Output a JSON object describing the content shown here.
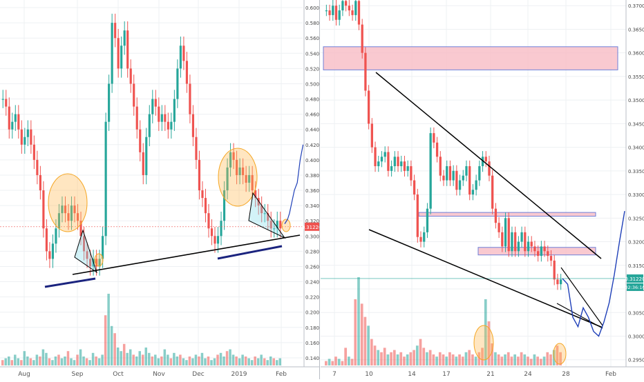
{
  "chart_data": [
    {
      "type": "candlestick",
      "x_ticks": [
        "Aug",
        "Sep",
        "Oct",
        "Nov",
        "Dec",
        "2019",
        "Feb"
      ],
      "y_ticks": [
        "0.60000",
        "0.58000",
        "0.56000",
        "0.54000",
        "0.52000",
        "0.50000",
        "0.48000",
        "0.46000",
        "0.44000",
        "0.42000",
        "0.40000",
        "0.38000",
        "0.36000",
        "0.34000",
        "0.32000",
        "0.30000",
        "0.28000",
        "0.26000",
        "0.24000",
        "0.22000",
        "0.20000",
        "0.18000",
        "0.16000",
        "0.14000"
      ],
      "ylim": [
        0.13,
        0.61
      ],
      "price_tag": "0.31220",
      "colors": {
        "up": "#26a69a",
        "down": "#ef5350",
        "projection": "#1e3fb8",
        "support": "#1a237e"
      },
      "price_series": [
        0.48,
        0.47,
        0.44,
        0.45,
        0.46,
        0.44,
        0.42,
        0.43,
        0.44,
        0.42,
        0.4,
        0.38,
        0.36,
        0.31,
        0.28,
        0.27,
        0.29,
        0.31,
        0.33,
        0.34,
        0.33,
        0.32,
        0.34,
        0.33,
        0.32,
        0.3,
        0.28,
        0.27,
        0.26,
        0.27,
        0.26,
        0.27,
        0.3,
        0.45,
        0.5,
        0.58,
        0.56,
        0.52,
        0.55,
        0.57,
        0.52,
        0.5,
        0.47,
        0.44,
        0.41,
        0.38,
        0.43,
        0.46,
        0.48,
        0.47,
        0.45,
        0.46,
        0.45,
        0.44,
        0.45,
        0.48,
        0.52,
        0.55,
        0.53,
        0.5,
        0.46,
        0.43,
        0.4,
        0.36,
        0.35,
        0.33,
        0.31,
        0.3,
        0.29,
        0.3,
        0.32,
        0.36,
        0.39,
        0.41,
        0.4,
        0.38,
        0.39,
        0.38,
        0.37,
        0.38,
        0.36,
        0.35,
        0.34,
        0.33,
        0.33,
        0.32,
        0.31,
        0.31,
        0.32,
        0.31
      ],
      "volume_series": [
        3,
        4,
        5,
        3,
        6,
        4,
        3,
        8,
        5,
        4,
        3,
        6,
        5,
        9,
        7,
        4,
        3,
        5,
        6,
        4,
        5,
        8,
        4,
        3,
        6,
        9,
        5,
        4,
        3,
        7,
        5,
        4,
        6,
        28,
        40,
        22,
        18,
        10,
        8,
        12,
        7,
        9,
        6,
        5,
        8,
        6,
        10,
        7,
        5,
        6,
        4,
        5,
        9,
        6,
        4,
        7,
        5,
        6,
        4,
        3,
        5,
        4,
        6,
        5,
        7,
        4,
        5,
        3,
        4,
        6,
        7,
        5,
        8,
        9,
        6,
        5,
        4,
        6,
        5,
        4,
        3,
        5,
        4,
        6,
        4,
        3,
        5,
        4,
        3,
        4
      ],
      "projection": [
        [
          0,
          0.316
        ],
        [
          0.3,
          0.322
        ],
        [
          0.5,
          0.33
        ],
        [
          0.7,
          0.342
        ],
        [
          1,
          0.36
        ],
        [
          1.3,
          0.37
        ],
        [
          1.6,
          0.4
        ],
        [
          1.9,
          0.42
        ]
      ]
    },
    {
      "type": "candlestick",
      "x_ticks": [
        "7",
        "10",
        "14",
        "17",
        "21",
        "24",
        "28",
        "Feb"
      ],
      "y_ticks": [
        "0.37000",
        "0.36500",
        "0.36000",
        "0.35500",
        "0.35000",
        "0.34500",
        "0.34000",
        "0.33500",
        "0.33000",
        "0.32500",
        "0.32000",
        "0.31500",
        "0.31000",
        "0.30500",
        "0.30000",
        "0.29500"
      ],
      "ylim": [
        0.2935,
        0.3712
      ],
      "price_tag": "0.31220",
      "countdown_tag": "02:36:16",
      "colors": {
        "up": "#26a69a",
        "down": "#ef5350",
        "projection": "#1e3fb8",
        "zone_fill": "#f8bcc4",
        "zone_border": "#6c7fd8"
      },
      "price_series": [
        0.369,
        0.368,
        0.37,
        0.367,
        0.369,
        0.371,
        0.37,
        0.369,
        0.368,
        0.371,
        0.366,
        0.36,
        0.352,
        0.345,
        0.34,
        0.336,
        0.337,
        0.338,
        0.339,
        0.335,
        0.336,
        0.338,
        0.336,
        0.337,
        0.335,
        0.336,
        0.333,
        0.33,
        0.321,
        0.32,
        0.322,
        0.327,
        0.343,
        0.341,
        0.338,
        0.334,
        0.333,
        0.336,
        0.333,
        0.335,
        0.331,
        0.333,
        0.334,
        0.336,
        0.33,
        0.331,
        0.333,
        0.336,
        0.338,
        0.337,
        0.334,
        0.327,
        0.324,
        0.322,
        0.319,
        0.325,
        0.318,
        0.322,
        0.318,
        0.32,
        0.322,
        0.318,
        0.32,
        0.319,
        0.318,
        0.317,
        0.319,
        0.318,
        0.317,
        0.316,
        0.312,
        0.311,
        0.312
      ],
      "volume_series": [
        2,
        3,
        2,
        4,
        3,
        2,
        8,
        4,
        3,
        30,
        40,
        28,
        22,
        18,
        12,
        9,
        7,
        6,
        8,
        5,
        6,
        7,
        5,
        6,
        4,
        5,
        6,
        7,
        9,
        12,
        8,
        6,
        7,
        5,
        4,
        6,
        5,
        4,
        6,
        5,
        4,
        5,
        4,
        6,
        7,
        5,
        4,
        6,
        8,
        30,
        20,
        10,
        6,
        5,
        4,
        5,
        6,
        4,
        5,
        4,
        6,
        5,
        4,
        3,
        5,
        4,
        3,
        4,
        6,
        5,
        7,
        9,
        6
      ],
      "projection": [
        [
          0,
          0.3122
        ],
        [
          0.25,
          0.311
        ],
        [
          0.5,
          0.304
        ],
        [
          0.75,
          0.302
        ],
        [
          1.0,
          0.306
        ],
        [
          1.25,
          0.304
        ],
        [
          1.5,
          0.301
        ],
        [
          1.75,
          0.3
        ],
        [
          2.0,
          0.303
        ],
        [
          2.25,
          0.307
        ],
        [
          2.5,
          0.313
        ],
        [
          2.75,
          0.32
        ],
        [
          3.0,
          0.3265
        ]
      ]
    }
  ]
}
